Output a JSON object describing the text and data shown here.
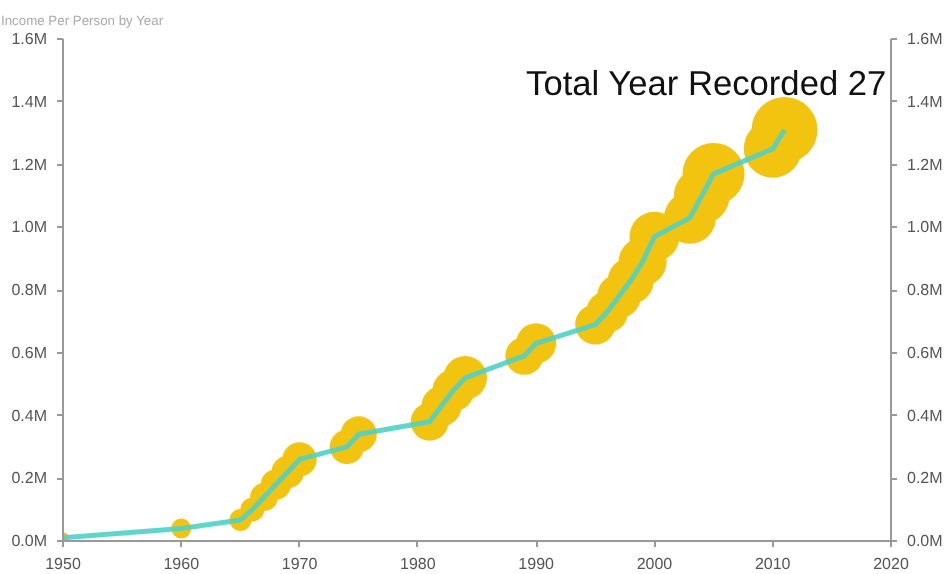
{
  "chart_data": {
    "type": "bubble",
    "title": "Total Year Recorded 27",
    "subtitle": "Income Per Person by Year",
    "x": [
      1950,
      1960,
      1965,
      1966,
      1967,
      1968,
      1969,
      1970,
      1974,
      1975,
      1981,
      1982,
      1983,
      1984,
      1989,
      1990,
      1995,
      1996,
      1997,
      1998,
      1999,
      2000,
      2003,
      2004,
      2005,
      2010,
      2011
    ],
    "series": [
      {
        "type": "line",
        "color": "#4fd1c5",
        "values": [
          0.01,
          0.04,
          0.067,
          0.1,
          0.14,
          0.18,
          0.22,
          0.26,
          0.3,
          0.34,
          0.38,
          0.43,
          0.48,
          0.52,
          0.59,
          0.63,
          0.69,
          0.73,
          0.78,
          0.83,
          0.89,
          0.97,
          1.03,
          1.1,
          1.17,
          1.25,
          1.31
        ]
      },
      {
        "type": "bubble",
        "color": "#f2c40f",
        "values": [
          0.01,
          0.04,
          0.067,
          0.1,
          0.14,
          0.18,
          0.22,
          0.26,
          0.3,
          0.34,
          0.38,
          0.43,
          0.48,
          0.52,
          0.59,
          0.63,
          0.69,
          0.73,
          0.78,
          0.83,
          0.89,
          0.97,
          1.03,
          1.1,
          1.17,
          1.25,
          1.31
        ],
        "sizes": [
          0.03,
          0.09,
          0.11,
          0.13,
          0.18,
          0.21,
          0.24,
          0.27,
          0.27,
          0.3,
          0.33,
          0.37,
          0.4,
          0.44,
          0.33,
          0.37,
          0.37,
          0.4,
          0.44,
          0.49,
          0.53,
          0.57,
          0.62,
          0.72,
          0.88,
          0.77,
          1
        ]
      }
    ],
    "xlim": [
      1950,
      2020
    ],
    "xticks": [
      1950,
      1960,
      1970,
      1980,
      1990,
      2000,
      2010,
      2020
    ],
    "ylim": [
      0,
      1.6
    ],
    "yticks": [
      {
        "value": 0,
        "label": "0.0M"
      },
      {
        "value": 0.2,
        "label": "0.2M"
      },
      {
        "value": 0.4,
        "label": "0.4M"
      },
      {
        "value": 0.6,
        "label": "0.6M"
      },
      {
        "value": 0.8,
        "label": "0.8M"
      },
      {
        "value": 1.0,
        "label": "1.0M"
      },
      {
        "value": 1.2,
        "label": "1.2M"
      },
      {
        "value": 1.4,
        "label": "1.4M"
      },
      {
        "value": 1.6,
        "label": "1.6M"
      }
    ],
    "y2lim": [
      0,
      1.6
    ],
    "y2ticks": [
      {
        "value": 0,
        "label": "0.0M"
      },
      {
        "value": 0.2,
        "label": "0.2M"
      },
      {
        "value": 0.4,
        "label": "0.4M"
      },
      {
        "value": 0.6,
        "label": "0.6M"
      },
      {
        "value": 0.8,
        "label": "0.8M"
      },
      {
        "value": 1.0,
        "label": "1.0M"
      },
      {
        "value": 1.2,
        "label": "1.2M"
      },
      {
        "value": 1.4,
        "label": "1.4M"
      },
      {
        "value": 1.6,
        "label": "1.6M"
      }
    ],
    "grid": false
  }
}
